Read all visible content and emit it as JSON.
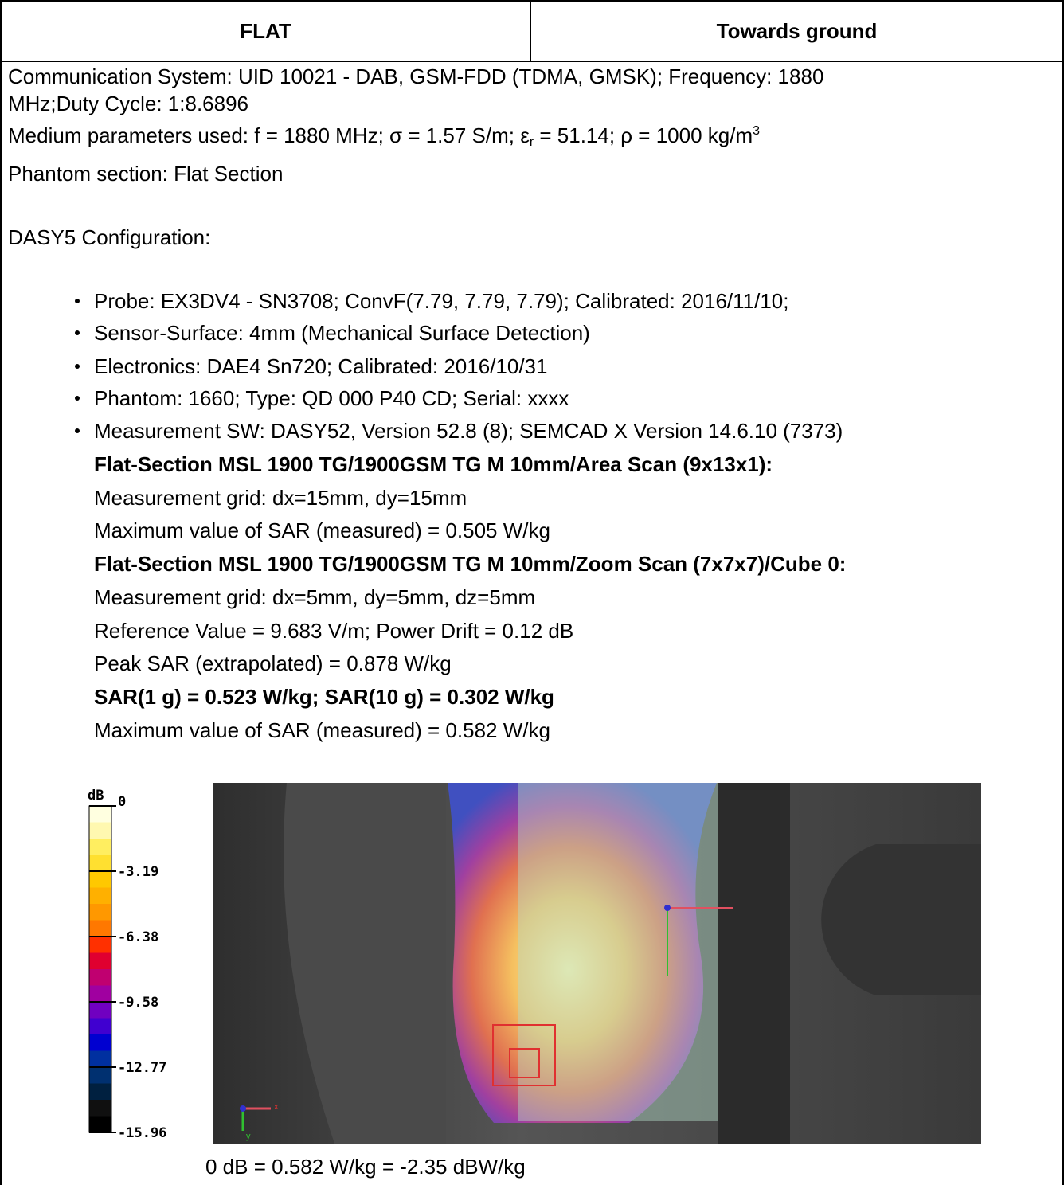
{
  "table": {
    "header": [
      "FLAT",
      "Towards ground"
    ],
    "intro": [
      "Communication System: UID 10021 - DAB, GSM-FDD (TDMA, GMSK); Frequency: 1880",
      "MHz;Duty Cycle: 1:8.6896"
    ],
    "medium": [
      "Medium parameters used: f = 1880 MHz; σ = 1.57 S/m; ε",
      "r",
      " = 51.14; ρ = 1000 kg/m",
      "3"
    ],
    "phantom_section": "Phantom section: Flat Section",
    "config_title": "DASY5 Configuration:",
    "bullets": [
      "Probe: EX3DV4 - SN3708; ConvF(7.79, 7.79, 7.79); Calibrated: 2016/11/10;",
      "Sensor-Surface: 4mm (Mechanical Surface Detection)",
      "Electronics: DAE4 Sn720; Calibrated: 2016/10/31",
      "Phantom: 1660; Type: QD 000 P40 CD; Serial: xxxx",
      "Measurement SW: DASY52, Version 52.8 (8); SEMCAD X Version 14.6.10 (7373)"
    ],
    "details": [
      {
        "text": "Flat-Section MSL 1900 TG/1900GSM TG M 10mm/Area Scan (9x13x1):",
        "bold": true
      },
      {
        "text": "Measurement grid: dx=15mm, dy=15mm",
        "bold": false
      },
      {
        "text": "Maximum value of SAR (measured) = 0.505 W/kg",
        "bold": false
      },
      {
        "text": "Flat-Section MSL 1900 TG/1900GSM TG M 10mm/Zoom Scan (7x7x7)/Cube 0:",
        "bold": true
      },
      {
        "text": "Measurement grid: dx=5mm, dy=5mm, dz=5mm",
        "bold": false
      },
      {
        "text": "Reference Value = 9.683 V/m; Power Drift = 0.12 dB",
        "bold": false
      },
      {
        "text": "Peak SAR (extrapolated) = 0.878 W/kg",
        "bold": false
      },
      {
        "text": "SAR(1 g) = 0.523 W/kg; SAR(10 g) = 0.302 W/kg",
        "bold": true
      },
      {
        "text": "Maximum value of SAR (measured) = 0.582 W/kg",
        "bold": false
      }
    ],
    "figure": {
      "colorbar_unit": "dB",
      "colorbar_labels": [
        "0",
        "-3.19",
        "-6.38",
        "-9.58",
        "-12.77",
        "-15.96"
      ],
      "axis_labels": [
        "x",
        "y"
      ],
      "caption": "0 dB = 0.582 W/kg = -2.35 dBW/kg"
    }
  }
}
